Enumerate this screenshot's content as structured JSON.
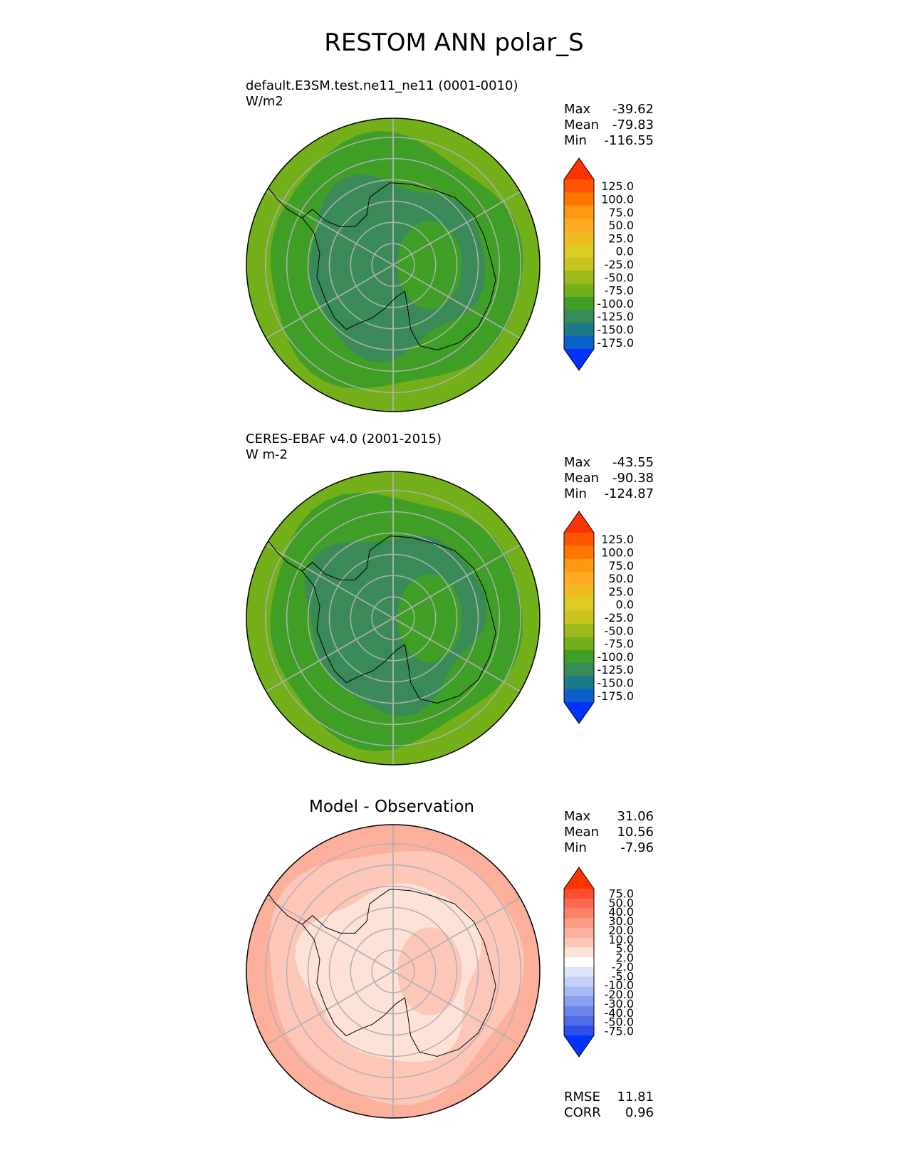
{
  "figure": {
    "title": "RESTOM ANN polar_S"
  },
  "panels": [
    {
      "id": "test",
      "label_line1": "default.E3SM.test.ne11_ne11 (0001-0010)",
      "label_line2": "W/m2",
      "stats": [
        {
          "name": "Max",
          "value": "-39.62"
        },
        {
          "name": "Mean",
          "value": "-79.83"
        },
        {
          "name": "Min",
          "value": "-116.55"
        }
      ],
      "colorbar": {
        "levels": [
          "125.0",
          "100.0",
          "75.0",
          "50.0",
          "25.0",
          "0.0",
          "-25.0",
          "-50.0",
          "-75.0",
          "-100.0",
          "-125.0",
          "-150.0",
          "-175.0"
        ],
        "colors": [
          "#ff3300",
          "#ff5500",
          "#ff7700",
          "#ff9911",
          "#ffaa22",
          "#eebb22",
          "#dccc22",
          "#c9c420",
          "#9cb91a",
          "#74b01a",
          "#3f9e25",
          "#3a8a58",
          "#1c7a8a",
          "#0a5fc8",
          "#0033ff"
        ],
        "zones": [
          {
            "value": -80,
            "color": "#74b01a"
          },
          {
            "value": -92,
            "color": "#3f9e25"
          },
          {
            "value": -110,
            "color": "#3a8a58"
          }
        ]
      }
    },
    {
      "id": "reference",
      "label_line1": "CERES-EBAF v4.0 (2001-2015)",
      "label_line2": "W m-2",
      "stats": [
        {
          "name": "Max",
          "value": "-43.55"
        },
        {
          "name": "Mean",
          "value": "-90.38"
        },
        {
          "name": "Min",
          "value": "-124.87"
        }
      ],
      "colorbar": {
        "levels": [
          "125.0",
          "100.0",
          "75.0",
          "50.0",
          "25.0",
          "0.0",
          "-25.0",
          "-50.0",
          "-75.0",
          "-100.0",
          "-125.0",
          "-150.0",
          "-175.0"
        ],
        "colors": [
          "#ff3300",
          "#ff5500",
          "#ff7700",
          "#ff9911",
          "#ffaa22",
          "#eebb22",
          "#dccc22",
          "#c9c420",
          "#9cb91a",
          "#74b01a",
          "#3f9e25",
          "#3a8a58",
          "#1c7a8a",
          "#0a5fc8",
          "#0033ff"
        ],
        "zones": [
          {
            "value": -80,
            "color": "#74b01a"
          },
          {
            "value": -95,
            "color": "#3f9e25"
          },
          {
            "value": -115,
            "color": "#3a8a58"
          }
        ]
      }
    },
    {
      "id": "difference",
      "title": "Model - Observation",
      "stats": [
        {
          "name": "Max",
          "value": "31.06"
        },
        {
          "name": "Mean",
          "value": "10.56"
        },
        {
          "name": "Min",
          "value": "-7.96"
        }
      ],
      "metrics": [
        {
          "name": "RMSE",
          "value": "11.81"
        },
        {
          "name": "CORR",
          "value": "0.96"
        }
      ],
      "colorbar": {
        "levels": [
          "75.0",
          "50.0",
          "40.0",
          "30.0",
          "20.0",
          "10.0",
          "5.0",
          "2.0",
          "-2.0",
          "-5.0",
          "-10.0",
          "-20.0",
          "-30.0",
          "-40.0",
          "-50.0",
          "-75.0"
        ],
        "colors": [
          "#ff3300",
          "#ff4c33",
          "#fe6a50",
          "#fd8068",
          "#fc9c85",
          "#fcb09c",
          "#fdc7b8",
          "#fee2d8",
          "#ffffff",
          "#e0e6fb",
          "#c6d1f8",
          "#a8b9f4",
          "#8aa0ef",
          "#6b86eb",
          "#4f6ce8",
          "#2f4eea",
          "#0033ff"
        ],
        "zones": [
          {
            "value": 10,
            "color": "#fcb09c"
          },
          {
            "value": 5,
            "color": "#fdc7b8"
          },
          {
            "value": 2,
            "color": "#fee2d8"
          }
        ]
      }
    }
  ],
  "chart_data": {
    "type": "heatmap",
    "projection": "south-polar-stereographic",
    "variable": "RESTOM",
    "season": "ANN",
    "region": "polar_S",
    "panels": [
      "test",
      "reference",
      "difference"
    ]
  }
}
